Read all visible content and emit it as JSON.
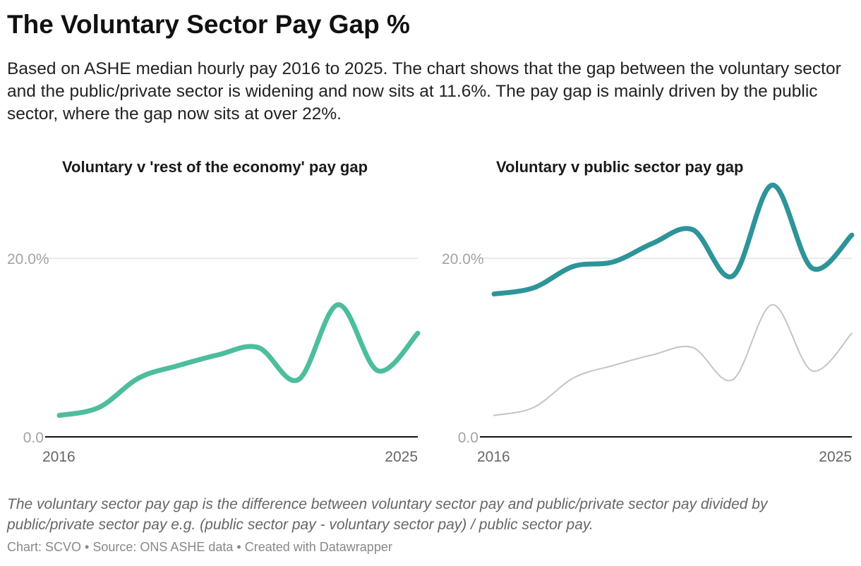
{
  "title": "The Voluntary Sector Pay Gap %",
  "description": "Based on ASHE median hourly pay 2016 to 2025. The chart shows that the gap between the voluntary sector and the public/private sector is widening and now sits at 11.6%. The pay gap is mainly driven by the public sector, where the gap now sits at over 22%.",
  "chart_data": [
    {
      "type": "line",
      "title": "Voluntary v 'rest of the economy' pay gap",
      "x": [
        2016,
        2017,
        2018,
        2019,
        2020,
        2021,
        2022,
        2023,
        2024,
        2025
      ],
      "series": [
        {
          "values": [
            2.4,
            3.3,
            6.6,
            8.0,
            9.2,
            10.0,
            6.4,
            14.8,
            7.4,
            11.6
          ],
          "color": "#4dbd9e"
        }
      ],
      "ylim": [
        0,
        20
      ],
      "y_ticks": [
        "0.0",
        "20.0%"
      ],
      "x_ticks": [
        "2016",
        "2025"
      ],
      "grid": true
    },
    {
      "type": "line",
      "title": "Voluntary v public sector pay gap",
      "x": [
        2016,
        2017,
        2018,
        2019,
        2020,
        2021,
        2022,
        2023,
        2024,
        2025
      ],
      "series": [
        {
          "values": [
            16.0,
            16.7,
            19.1,
            19.6,
            21.7,
            23.2,
            18.0,
            28.2,
            18.9,
            22.6
          ],
          "color": "#2e9499"
        },
        {
          "values": [
            2.4,
            3.3,
            6.6,
            8.0,
            9.2,
            10.0,
            6.4,
            14.8,
            7.4,
            11.6
          ],
          "color": "#c4c4c4"
        }
      ],
      "ylim": [
        0,
        20
      ],
      "y_ticks": [
        "0.0",
        "20.0%"
      ],
      "x_ticks": [
        "2016",
        "2025"
      ],
      "grid": true
    }
  ],
  "note": "The voluntary sector pay gap is the difference between voluntary sector pay and public/private sector pay divided by public/private sector pay e.g. (public sector pay - voluntary sector pay) / public sector pay.",
  "credit": "Chart: SCVO • Source: ONS ASHE data • Created with Datawrapper"
}
